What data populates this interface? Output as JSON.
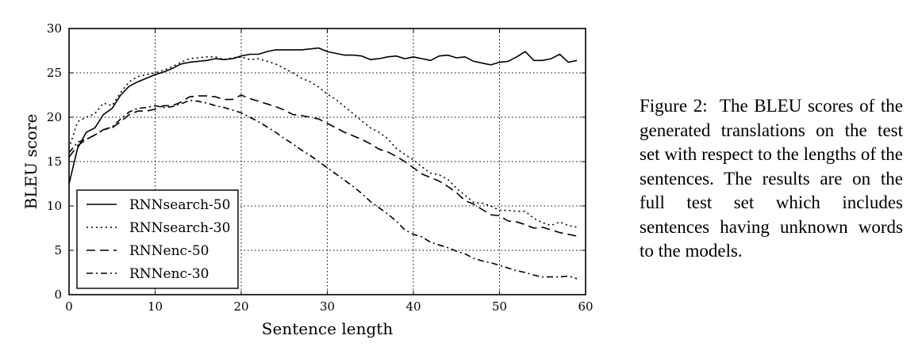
{
  "caption": {
    "label": "Figure 2:",
    "text": "The BLEU scores of the generated translations on the test set with respect to the lengths of the sentences. The results are on the full test set which includes sentences having unknown words to the models."
  },
  "chart_data": {
    "type": "line",
    "title": "",
    "xlabel": "Sentence length",
    "ylabel": "BLEU score",
    "xlim": [
      0,
      60
    ],
    "ylim": [
      0,
      30
    ],
    "xticks": [
      0,
      10,
      20,
      30,
      40,
      50,
      60
    ],
    "yticks": [
      0,
      5,
      10,
      15,
      20,
      25,
      30
    ],
    "grid": true,
    "legend_position": "lower-left",
    "series": [
      {
        "name": "RNNsearch-50",
        "style": "solid",
        "x": [
          0,
          1,
          2,
          3,
          4,
          5,
          6,
          7,
          8,
          9,
          10,
          11,
          12,
          13,
          14,
          15,
          16,
          17,
          18,
          19,
          20,
          21,
          22,
          23,
          24,
          25,
          26,
          27,
          28,
          29,
          30,
          31,
          32,
          33,
          34,
          35,
          36,
          37,
          38,
          39,
          40,
          41,
          42,
          43,
          44,
          45,
          46,
          47,
          48,
          49,
          50,
          51,
          52,
          53,
          54,
          55,
          56,
          57,
          58,
          59
        ],
        "y": [
          12.5,
          16.5,
          18.3,
          18.8,
          20.3,
          21.0,
          22.5,
          23.5,
          24.0,
          24.4,
          24.8,
          25.1,
          25.5,
          26.0,
          26.2,
          26.3,
          26.4,
          26.6,
          26.5,
          26.6,
          26.9,
          27.1,
          27.1,
          27.4,
          27.6,
          27.6,
          27.6,
          27.6,
          27.7,
          27.8,
          27.4,
          27.2,
          27.0,
          27.0,
          26.9,
          26.5,
          26.6,
          26.8,
          26.9,
          26.6,
          26.8,
          26.6,
          26.4,
          26.9,
          27.0,
          26.7,
          26.8,
          26.3,
          26.1,
          25.9,
          26.2,
          26.3,
          26.8,
          27.4,
          26.4,
          26.4,
          26.6,
          27.1,
          26.2,
          26.4
        ]
      },
      {
        "name": "RNNsearch-30",
        "style": "dotted",
        "x": [
          0,
          1,
          2,
          3,
          4,
          5,
          6,
          7,
          8,
          9,
          10,
          11,
          12,
          13,
          14,
          15,
          16,
          17,
          18,
          19,
          20,
          21,
          22,
          23,
          24,
          25,
          26,
          27,
          28,
          29,
          30,
          31,
          32,
          33,
          34,
          35,
          36,
          37,
          38,
          39,
          40,
          41,
          42,
          43,
          44,
          45,
          46,
          47,
          48,
          49,
          50,
          51,
          52,
          53,
          54,
          55,
          56,
          57,
          58,
          59
        ],
        "y": [
          16.5,
          19.5,
          20.0,
          20.4,
          21.6,
          21.3,
          22.8,
          24.0,
          24.6,
          24.8,
          25.0,
          25.3,
          25.7,
          26.2,
          26.6,
          26.7,
          26.8,
          26.8,
          26.5,
          26.7,
          26.8,
          26.5,
          26.6,
          26.3,
          26.0,
          25.5,
          25.0,
          24.4,
          24.0,
          23.4,
          22.6,
          22.0,
          21.2,
          20.4,
          19.6,
          18.8,
          18.3,
          17.6,
          16.5,
          15.8,
          15.2,
          14.4,
          13.7,
          13.5,
          13.0,
          12.0,
          11.2,
          10.4,
          10.3,
          10.0,
          9.5,
          9.5,
          9.4,
          9.4,
          8.6,
          8.1,
          7.8,
          8.2,
          7.8,
          7.6
        ]
      },
      {
        "name": "RNNenc-50",
        "style": "dashed",
        "x": [
          0,
          1,
          2,
          3,
          4,
          5,
          6,
          7,
          8,
          9,
          10,
          11,
          12,
          13,
          14,
          15,
          16,
          17,
          18,
          19,
          20,
          21,
          22,
          23,
          24,
          25,
          26,
          27,
          28,
          29,
          30,
          31,
          32,
          33,
          34,
          35,
          36,
          37,
          38,
          39,
          40,
          41,
          42,
          43,
          44,
          45,
          46,
          47,
          48,
          49,
          50,
          51,
          52,
          53,
          54,
          55,
          56,
          57,
          58,
          59
        ],
        "y": [
          15.5,
          16.8,
          17.5,
          18.0,
          18.6,
          18.8,
          19.5,
          20.3,
          20.7,
          20.7,
          20.9,
          21.3,
          21.3,
          21.7,
          22.3,
          22.4,
          22.4,
          22.3,
          22.0,
          22.0,
          22.5,
          22.1,
          21.8,
          21.5,
          21.2,
          20.8,
          20.3,
          20.2,
          20.0,
          19.8,
          19.3,
          18.8,
          18.3,
          17.9,
          17.5,
          17.0,
          16.4,
          16.1,
          15.6,
          15.0,
          14.3,
          13.6,
          13.2,
          12.8,
          12.2,
          11.5,
          10.6,
          10.2,
          9.6,
          9.0,
          8.9,
          8.3,
          8.2,
          7.9,
          7.5,
          7.6,
          7.3,
          7.0,
          6.8,
          6.6
        ]
      },
      {
        "name": "RNNenc-30",
        "style": "dash-dot",
        "x": [
          0,
          1,
          2,
          3,
          4,
          5,
          6,
          7,
          8,
          9,
          10,
          11,
          12,
          13,
          14,
          15,
          16,
          17,
          18,
          19,
          20,
          21,
          22,
          23,
          24,
          25,
          26,
          27,
          28,
          29,
          30,
          31,
          32,
          33,
          34,
          35,
          36,
          37,
          38,
          39,
          40,
          41,
          42,
          43,
          44,
          45,
          46,
          47,
          48,
          49,
          50,
          51,
          52,
          53,
          54,
          55,
          56,
          57,
          58,
          59
        ],
        "y": [
          16.0,
          17.2,
          17.5,
          18.0,
          18.6,
          18.9,
          19.8,
          20.6,
          21.0,
          21.1,
          21.3,
          21.1,
          21.2,
          21.5,
          21.9,
          21.8,
          21.6,
          21.3,
          21.1,
          20.8,
          20.5,
          20.0,
          19.5,
          18.9,
          18.3,
          17.6,
          17.0,
          16.3,
          15.7,
          15.0,
          14.3,
          13.6,
          12.9,
          12.2,
          11.4,
          10.5,
          9.8,
          9.1,
          8.3,
          7.3,
          6.8,
          6.5,
          5.9,
          5.6,
          5.3,
          4.9,
          4.6,
          4.1,
          3.8,
          3.6,
          3.3,
          3.0,
          2.7,
          2.5,
          2.2,
          2.0,
          2.0,
          2.0,
          2.1,
          1.8
        ]
      }
    ]
  }
}
